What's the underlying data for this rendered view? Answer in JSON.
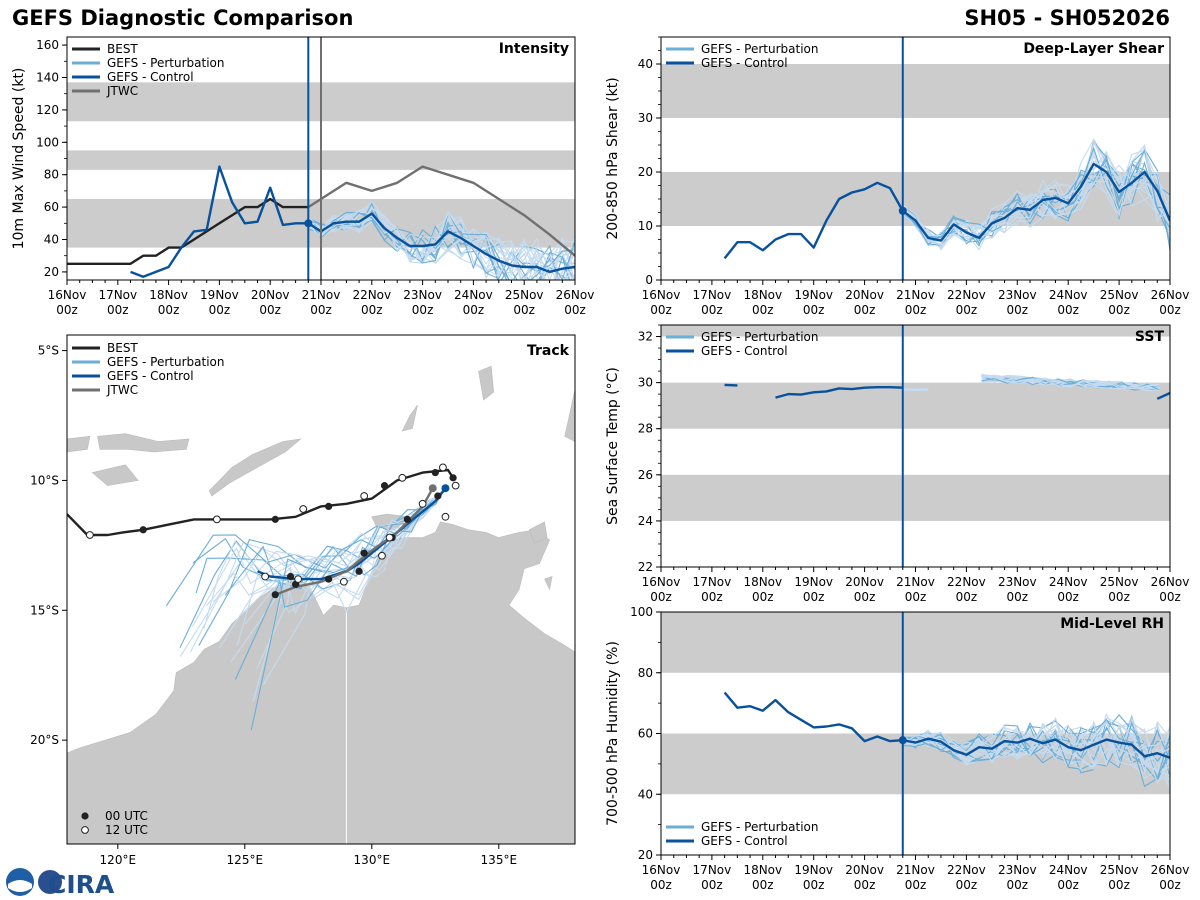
{
  "header": {
    "title": "GEFS Diagnostic Comparison",
    "storm_id": "SH05 - SH052026"
  },
  "time_ticks": [
    [
      "16Nov",
      "00z"
    ],
    [
      "17Nov",
      "00z"
    ],
    [
      "18Nov",
      "00z"
    ],
    [
      "19Nov",
      "00z"
    ],
    [
      "20Nov",
      "00z"
    ],
    [
      "21Nov",
      "00z"
    ],
    [
      "22Nov",
      "00z"
    ],
    [
      "23Nov",
      "00z"
    ],
    [
      "24Nov",
      "00z"
    ],
    [
      "25Nov",
      "00z"
    ],
    [
      "26Nov",
      "00z"
    ]
  ],
  "colors": {
    "best": "#222222",
    "perturbation": "#6baed6",
    "perturbation_light": "#c6dbef",
    "control": "#08519c",
    "jtwc": "#707070",
    "band": "#cccccc",
    "land": "#c8c8c8"
  },
  "legend_labels": {
    "best": "BEST",
    "perturbation": "GEFS - Perturbation",
    "control": "GEFS - Control",
    "jtwc": "JTWC",
    "utc00": "00 UTC",
    "utc12": "12 UTC"
  },
  "logo": {
    "text": "CIRA",
    "agency": "NOAA"
  },
  "chart_data": [
    {
      "type": "line",
      "title": "Intensity",
      "ylabel": "10m Max Wind Speed (kt)",
      "ylim": [
        15,
        165
      ],
      "yticks": [
        "20",
        "40",
        "60",
        "80",
        "100",
        "120",
        "140",
        "160"
      ],
      "bands": [
        [
          35,
          65
        ],
        [
          83,
          95
        ],
        [
          113,
          137
        ]
      ],
      "init_time_day": 4.75,
      "jtwc_time_day": 5.0,
      "series": [
        {
          "name": "BEST",
          "x": [
            0,
            0.25,
            0.5,
            0.75,
            1,
            1.25,
            1.5,
            1.75,
            2,
            2.25,
            2.5,
            2.75,
            3,
            3.25,
            3.5,
            3.75,
            4,
            4.25,
            4.5,
            4.75
          ],
          "y": [
            25,
            25,
            25,
            25,
            25,
            25,
            30,
            30,
            35,
            35,
            40,
            45,
            50,
            55,
            60,
            60,
            65,
            60,
            60,
            60
          ]
        },
        {
          "name": "GEFS - Control",
          "x": [
            1.25,
            1.5,
            1.75,
            2,
            2.25,
            2.5,
            2.75,
            3,
            3.25,
            3.5,
            3.75,
            4,
            4.25,
            4.5,
            4.75,
            5,
            5.25,
            5.5,
            5.75,
            6,
            6.25,
            6.5,
            6.75,
            7,
            7.25,
            7.5,
            7.75,
            8,
            8.25,
            8.5,
            8.75,
            9,
            9.25,
            9.5,
            9.75,
            10
          ],
          "y": [
            20,
            17,
            20,
            23,
            35,
            45,
            46,
            85,
            63,
            50,
            51,
            72,
            49,
            50,
            50,
            45,
            50,
            51,
            51,
            56,
            47,
            41,
            36,
            36,
            37,
            45,
            41,
            36,
            31,
            27,
            24,
            23,
            23,
            20,
            22,
            23
          ]
        },
        {
          "name": "JTWC",
          "x": [
            4.75,
            5,
            5.5,
            6,
            6.5,
            7,
            8,
            9,
            9.5,
            10
          ],
          "y": [
            60,
            65,
            75,
            70,
            75,
            85,
            75,
            55,
            43,
            30
          ]
        }
      ]
    },
    {
      "type": "line",
      "title": "Deep-Layer Shear",
      "ylabel": "200-850 hPa Shear (kt)",
      "ylim": [
        0,
        45
      ],
      "yticks": [
        "0",
        "10",
        "20",
        "30",
        "40"
      ],
      "bands": [
        [
          10,
          20
        ],
        [
          30,
          40
        ]
      ],
      "init_time_day": 4.75,
      "series": [
        {
          "name": "GEFS - Control",
          "x": [
            1.25,
            1.5,
            1.75,
            2,
            2.25,
            2.5,
            2.75,
            3,
            3.25,
            3.5,
            3.75,
            4,
            4.25,
            4.5,
            4.75,
            5,
            5.25,
            5.5,
            5.75,
            6,
            6.25,
            6.5,
            6.75,
            7,
            7.25,
            7.5,
            7.75,
            8,
            8.25,
            8.5,
            8.75,
            9,
            9.25,
            9.5,
            9.75,
            10
          ],
          "y": [
            4,
            7,
            7,
            5.5,
            7.5,
            8.5,
            8.5,
            6,
            11,
            15,
            16.2,
            16.8,
            18,
            17,
            12.8,
            11,
            7.8,
            7.3,
            10.3,
            8.8,
            7.8,
            10.5,
            11.5,
            13.3,
            13,
            14.8,
            15.2,
            14.2,
            17.3,
            21.5,
            20,
            16.3,
            18,
            20,
            16.5,
            11
          ]
        }
      ]
    },
    {
      "type": "line",
      "title": "SST",
      "ylabel": "Sea Surface Temp (°C)",
      "ylim": [
        22,
        32.5
      ],
      "yticks": [
        "22",
        "24",
        "26",
        "28",
        "30",
        "32"
      ],
      "bands": [
        [
          24,
          26
        ],
        [
          28,
          30
        ],
        [
          32,
          32.5
        ]
      ],
      "init_time_day": 4.75,
      "series": [
        {
          "name": "GEFS - Control",
          "x": [
            1.25,
            1.5,
            2.25,
            2.5,
            2.75,
            3,
            3.25,
            3.5,
            3.75,
            4,
            4.25,
            4.5,
            4.75
          ],
          "y": [
            29.9,
            29.88,
            29.35,
            29.5,
            29.48,
            29.58,
            29.62,
            29.75,
            29.72,
            29.78,
            29.8,
            29.8,
            29.78
          ]
        }
      ]
    },
    {
      "type": "line",
      "title": "Mid-Level RH",
      "ylabel": "700-500 hPa Humidity (%)",
      "ylim": [
        20,
        100
      ],
      "yticks": [
        "20",
        "40",
        "60",
        "80",
        "100"
      ],
      "bands": [
        [
          40,
          60
        ],
        [
          80,
          100
        ]
      ],
      "init_time_day": 4.75,
      "series": [
        {
          "name": "GEFS - Control",
          "x": [
            1.25,
            1.5,
            1.75,
            2,
            2.25,
            2.5,
            2.75,
            3,
            3.25,
            3.5,
            3.75,
            4,
            4.25,
            4.5,
            4.75,
            5,
            5.25,
            5.5,
            5.75,
            6,
            6.25,
            6.5,
            6.75,
            7,
            7.25,
            7.5,
            7.75,
            8,
            8.25,
            8.5,
            8.75,
            9,
            9.25,
            9.5,
            9.75,
            10
          ],
          "y": [
            73.5,
            68.5,
            69,
            67.5,
            71,
            67,
            64.5,
            62,
            62.3,
            63,
            61.7,
            57.5,
            59,
            57.5,
            57.8,
            57,
            58.3,
            57.3,
            54.5,
            53,
            55.5,
            55,
            57.5,
            57,
            58.3,
            56.8,
            58,
            55.5,
            54.5,
            56.3,
            58,
            57,
            56.3,
            52.5,
            53.5,
            52
          ]
        }
      ]
    },
    {
      "type": "scatter",
      "title": "Track",
      "lon_ticks": [
        "120°E",
        "125°E",
        "130°E",
        "135°E"
      ],
      "lat_ticks": [
        "5°S",
        "10°S",
        "15°S",
        "20°S"
      ],
      "lon_range": [
        118,
        138
      ],
      "lat_range": [
        -24,
        -4.4
      ],
      "series": [
        {
          "name": "BEST",
          "lon": [
            118,
            118.8,
            119.6,
            120.2,
            121,
            122,
            123,
            124,
            125,
            126,
            127,
            128,
            129,
            130,
            131,
            132,
            133,
            133.2
          ],
          "lat": [
            -11.3,
            -12.1,
            -12.1,
            -12.0,
            -11.9,
            -11.7,
            -11.5,
            -11.5,
            -11.5,
            -11.5,
            -11.4,
            -11.0,
            -10.9,
            -10.7,
            -10.0,
            -9.7,
            -9.6,
            -9.9
          ]
        },
        {
          "name": "GEFS - Control",
          "lon": [
            125.5,
            126,
            127,
            128,
            129,
            129.5,
            130,
            130.5,
            131,
            131.5,
            132,
            132.5,
            132.9
          ],
          "lat": [
            -13.5,
            -13.7,
            -13.8,
            -13.8,
            -13.5,
            -13.2,
            -12.8,
            -12.4,
            -12.0,
            -11.6,
            -11.2,
            -10.8,
            -10.3
          ]
        },
        {
          "name": "JTWC",
          "lon": [
            126.2,
            127,
            128,
            129,
            130,
            131,
            131.5,
            132,
            132.4
          ],
          "lat": [
            -14.4,
            -14.1,
            -13.9,
            -13.5,
            -12.7,
            -12.0,
            -11.5,
            -11.0,
            -10.3
          ]
        }
      ],
      "best_marks_00": [
        [
          121,
          -11.9
        ],
        [
          126.2,
          -11.5
        ],
        [
          128.3,
          -11.0
        ],
        [
          130.5,
          -10.2
        ],
        [
          132.5,
          -9.7
        ],
        [
          133.2,
          -9.9
        ],
        [
          132.6,
          -10.6
        ],
        [
          131.4,
          -11.5
        ],
        [
          130.8,
          -12.2
        ],
        [
          129.7,
          -12.8
        ],
        [
          128.3,
          -13.8
        ],
        [
          126.8,
          -13.7
        ],
        [
          126.2,
          -14.4
        ],
        [
          127.0,
          -14.0
        ],
        [
          129.5,
          -13.5
        ]
      ],
      "best_marks_12": [
        [
          118.9,
          -12.1
        ],
        [
          123.9,
          -11.5
        ],
        [
          127.3,
          -11.1
        ],
        [
          129.7,
          -10.6
        ],
        [
          131.2,
          -9.9
        ],
        [
          132.8,
          -9.5
        ],
        [
          133.3,
          -10.2
        ],
        [
          132.0,
          -10.9
        ],
        [
          130.7,
          -12.2
        ],
        [
          130.4,
          -12.9
        ],
        [
          128.9,
          -13.9
        ],
        [
          127.1,
          -13.8
        ],
        [
          125.8,
          -13.7
        ],
        [
          132.9,
          -11.4
        ]
      ],
      "control_point": [
        132.9,
        -10.3
      ],
      "jtwc_point": [
        132.4,
        -10.3
      ],
      "control_init_marks": [
        {
          "chart": 0,
          "value": 50
        },
        {
          "chart": 1,
          "value": 12.8
        },
        {
          "chart": 3,
          "value": 57.8
        }
      ]
    }
  ]
}
